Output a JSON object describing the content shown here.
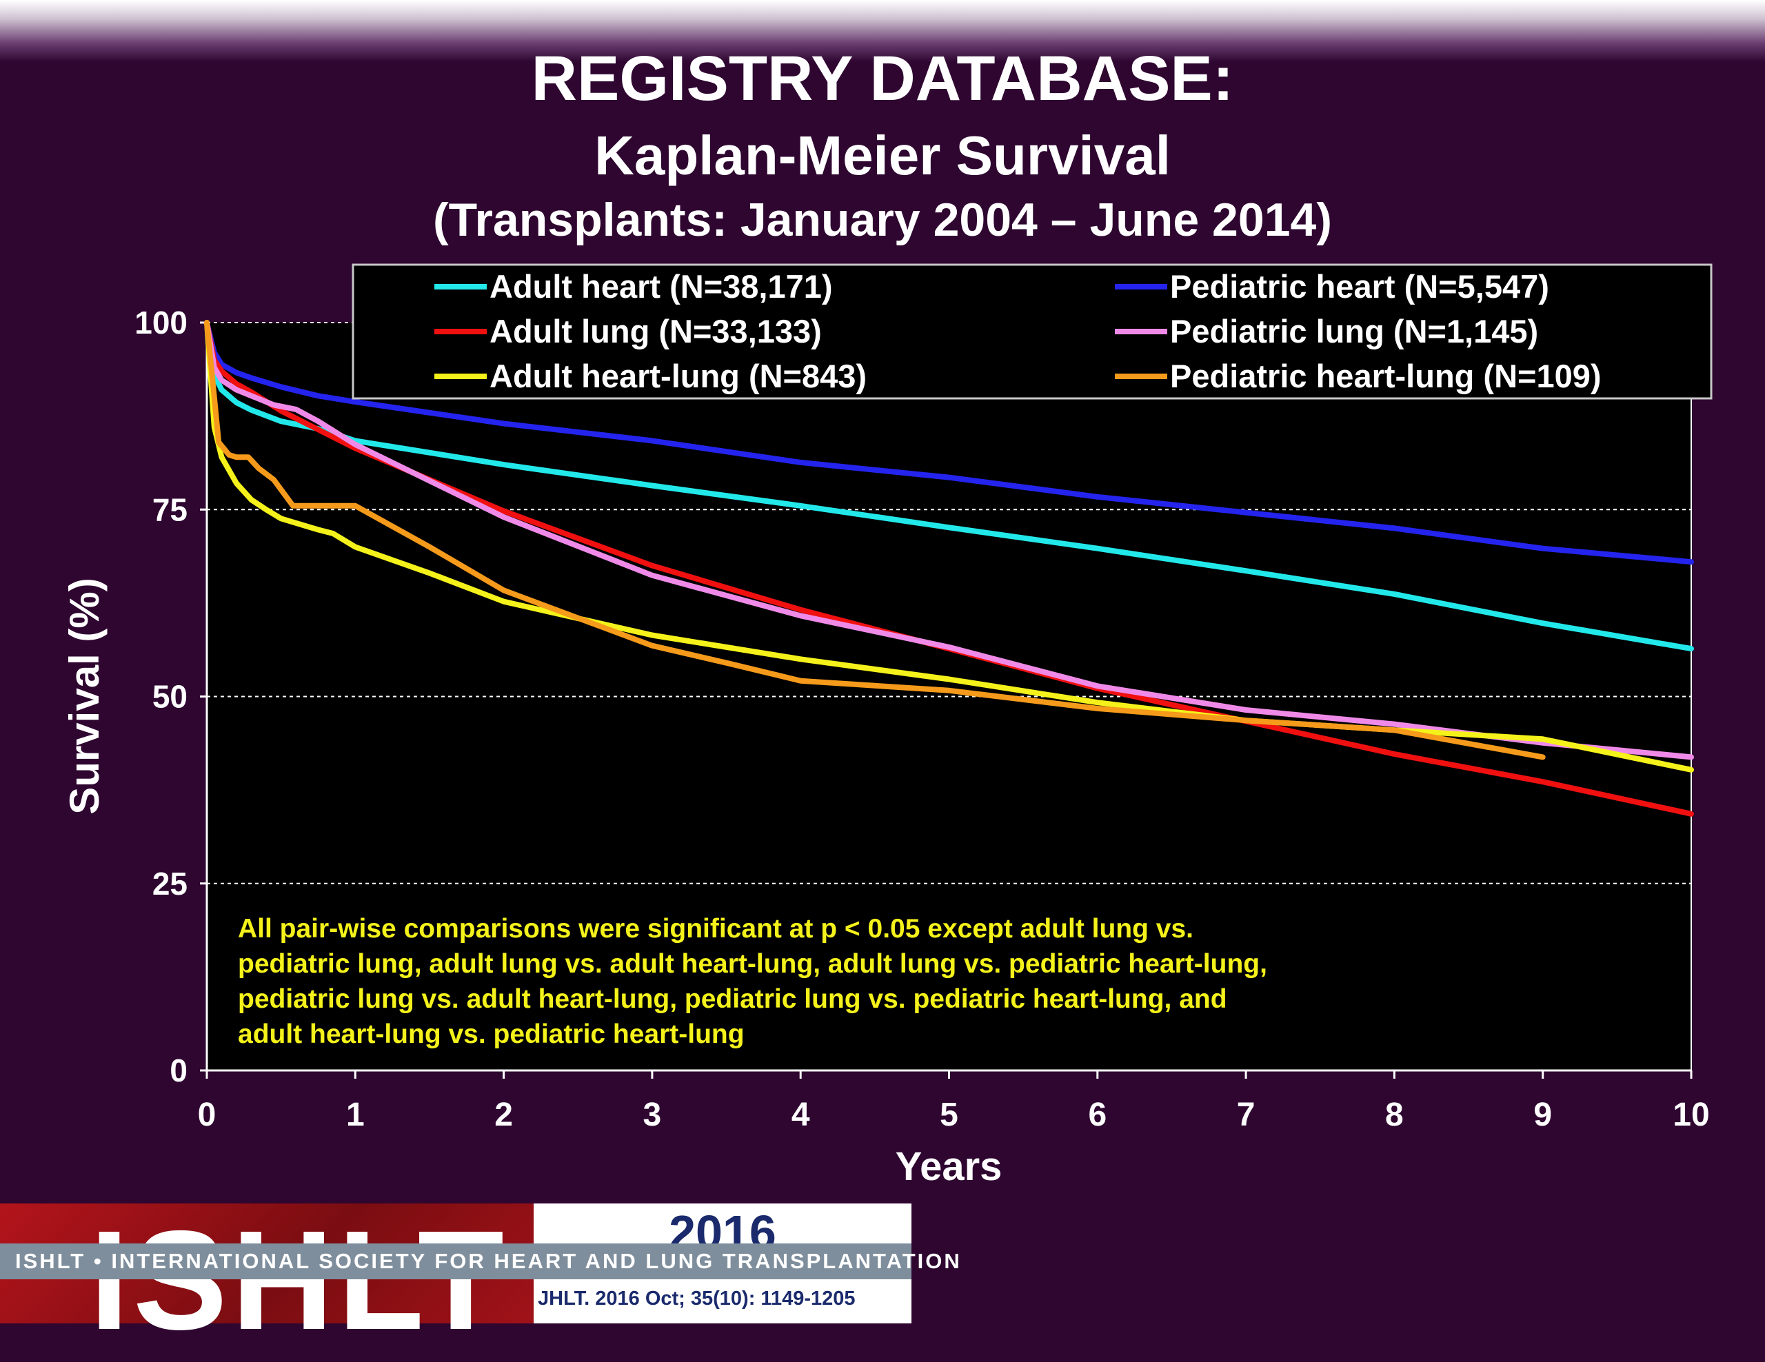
{
  "titles": {
    "line1": "REGISTRY DATABASE:",
    "line2": "Kaplan-Meier Survival",
    "line3": "(Transplants: January 2004 – June 2014)"
  },
  "chart_data": {
    "type": "line",
    "xlabel": "Years",
    "ylabel": "Survival (%)",
    "xlim": [
      0,
      10
    ],
    "ylim": [
      0,
      100
    ],
    "xticks": [
      0,
      1,
      2,
      3,
      4,
      5,
      6,
      7,
      8,
      9,
      10
    ],
    "yticks": [
      0,
      25,
      50,
      75,
      100
    ],
    "grid": "horizontal dashed",
    "legend_position": "top",
    "annotation": [
      "All pair-wise comparisons were significant at p < 0.05 except adult lung vs.",
      "pediatric lung, adult lung vs. adult heart-lung, adult lung vs. pediatric heart-lung,",
      "pediatric lung vs. adult heart-lung, pediatric lung vs. pediatric heart-lung,  and",
      "adult heart-lung vs. pediatric heart-lung"
    ],
    "series": [
      {
        "name": "Adult heart (N=38,171)",
        "color": "#22e8ea",
        "x": [
          0,
          0.05,
          0.1,
          0.2,
          0.3,
          0.5,
          0.75,
          1,
          2,
          3,
          4,
          5,
          6,
          7,
          8,
          9,
          10
        ],
        "y": [
          100,
          93,
          91,
          89.3,
          88.3,
          86.8,
          85.8,
          84.2,
          81,
          78.2,
          75.5,
          72.6,
          69.8,
          66.8,
          63.7,
          59.8,
          56.4
        ]
      },
      {
        "name": "Pediatric heart (N=5,547)",
        "color": "#2424ee",
        "x": [
          0,
          0.05,
          0.1,
          0.2,
          0.3,
          0.5,
          0.75,
          1,
          2,
          3,
          4,
          5,
          6,
          7,
          8,
          9,
          10
        ],
        "y": [
          100,
          96,
          94.4,
          93.3,
          92.6,
          91.4,
          90.2,
          89.4,
          86.5,
          84.2,
          81.3,
          79.3,
          76.7,
          74.6,
          72.5,
          69.8,
          68
        ]
      },
      {
        "name": "Adult lung (N=33,133)",
        "color": "#f01010",
        "x": [
          0,
          0.05,
          0.1,
          0.2,
          0.3,
          0.5,
          0.75,
          1,
          2,
          3,
          4,
          5,
          6,
          7,
          8,
          9,
          10
        ],
        "y": [
          100,
          95,
          93.5,
          91.8,
          90.7,
          88.2,
          85.7,
          83.2,
          74.8,
          67.5,
          61.6,
          56.4,
          51.1,
          46.7,
          42.3,
          38.6,
          34.3
        ]
      },
      {
        "name": "Pediatric lung (N=1,145)",
        "color": "#f08ae8",
        "x": [
          0,
          0.05,
          0.1,
          0.2,
          0.3,
          0.45,
          0.6,
          0.75,
          1,
          2,
          3,
          4,
          5,
          6,
          7,
          8,
          9,
          10
        ],
        "y": [
          100,
          94,
          92.3,
          91,
          90.2,
          89,
          88.4,
          86.8,
          83.7,
          74,
          66.2,
          60.8,
          56.6,
          51.4,
          48.2,
          46.3,
          43.8,
          41.9
        ]
      },
      {
        "name": "Adult heart-lung (N=843)",
        "color": "#f4f21a",
        "x": [
          0,
          0.05,
          0.1,
          0.2,
          0.3,
          0.4,
          0.5,
          0.75,
          0.85,
          1,
          1.5,
          2,
          3,
          4,
          5,
          6,
          7,
          8,
          9,
          10
        ],
        "y": [
          100,
          86,
          82,
          78.5,
          76.3,
          75,
          73.8,
          72.3,
          71.8,
          70,
          66.5,
          62.7,
          58.2,
          55,
          52.3,
          49.2,
          46.8,
          45.5,
          44.3,
          40.2
        ]
      },
      {
        "name": "Pediatric heart-lung (N=109)",
        "color": "#f59a1a",
        "x": [
          0,
          0.05,
          0.08,
          0.15,
          0.2,
          0.28,
          0.35,
          0.45,
          0.58,
          0.7,
          1,
          1.5,
          2,
          2.5,
          3,
          3.5,
          4,
          5,
          6,
          7,
          8,
          9
        ],
        "y": [
          100,
          90,
          84,
          82.3,
          82,
          82,
          80.5,
          79,
          75.5,
          75.5,
          75.5,
          70,
          64.2,
          60.5,
          56.8,
          54.5,
          52.1,
          50.8,
          48.4,
          46.8,
          45.5,
          41.9
        ]
      }
    ]
  },
  "footer": {
    "logo_text": "ISHLT",
    "strip": "ISHLT • INTERNATIONAL SOCIETY FOR HEART AND LUNG TRANSPLANTATION",
    "year": "2016",
    "citation": "JHLT. 2016 Oct; 35(10): 1149-1205"
  }
}
